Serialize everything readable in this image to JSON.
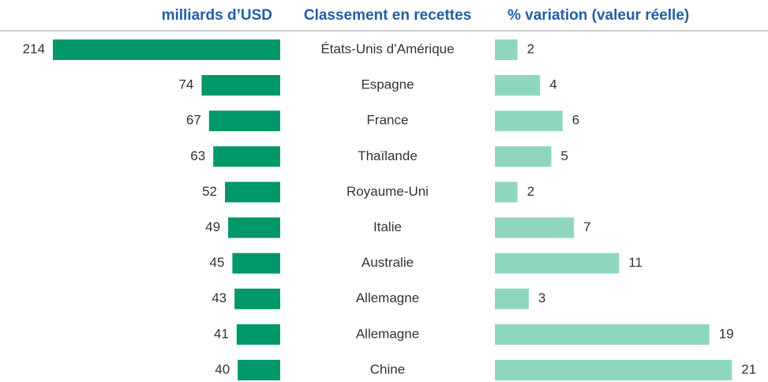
{
  "chart_data": {
    "type": "bar",
    "category_header": "Classement en recettes",
    "categories": [
      "États-Unis d’Amérique",
      "Espagne",
      "France",
      "Thaïlande",
      "Royaume-Uni",
      "Italie",
      "Australie",
      "Allemagne",
      "Allemagne",
      "Chine"
    ],
    "series": [
      {
        "name": "milliards d’USD",
        "color": "#00976a",
        "values": [
          214,
          74,
          67,
          63,
          52,
          49,
          45,
          43,
          41,
          40
        ]
      },
      {
        "name": "% variation (valeur réelle)",
        "color": "#8fd6bf",
        "values": [
          2,
          4,
          6,
          5,
          2,
          7,
          11,
          3,
          19,
          21
        ]
      }
    ]
  }
}
